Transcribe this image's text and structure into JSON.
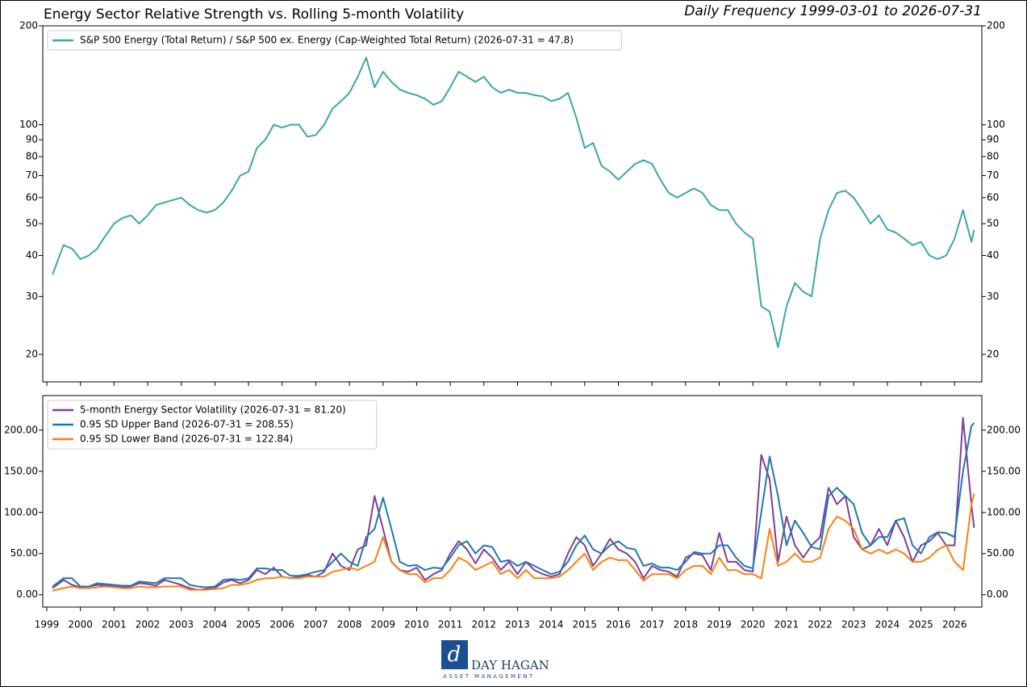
{
  "chart_data": [
    {
      "type": "line",
      "title": "Energy Sector Relative Strength vs. Rolling 5-month Volatility",
      "subtitle": "Daily Frequency 1999-03-01 to 2026-07-31",
      "log_scale": true,
      "x": [
        1999.17,
        1999.5,
        1999.75,
        2000.0,
        2000.25,
        2000.5,
        2000.75,
        2001.0,
        2001.25,
        2001.5,
        2001.75,
        2002.0,
        2002.25,
        2002.5,
        2002.75,
        2003.0,
        2003.25,
        2003.5,
        2003.75,
        2004.0,
        2004.25,
        2004.5,
        2004.75,
        2005.0,
        2005.25,
        2005.5,
        2005.75,
        2006.0,
        2006.25,
        2006.5,
        2006.75,
        2007.0,
        2007.25,
        2007.5,
        2007.75,
        2008.0,
        2008.25,
        2008.5,
        2008.75,
        2009.0,
        2009.25,
        2009.5,
        2009.75,
        2010.0,
        2010.25,
        2010.5,
        2010.75,
        2011.0,
        2011.25,
        2011.5,
        2011.75,
        2012.0,
        2012.25,
        2012.5,
        2012.75,
        2013.0,
        2013.25,
        2013.5,
        2013.75,
        2014.0,
        2014.25,
        2014.5,
        2014.75,
        2015.0,
        2015.25,
        2015.5,
        2015.75,
        2016.0,
        2016.25,
        2016.5,
        2016.75,
        2017.0,
        2017.25,
        2017.5,
        2017.75,
        2018.0,
        2018.25,
        2018.5,
        2018.75,
        2019.0,
        2019.25,
        2019.5,
        2019.75,
        2020.0,
        2020.25,
        2020.5,
        2020.75,
        2021.0,
        2021.25,
        2021.5,
        2021.75,
        2022.0,
        2022.25,
        2022.5,
        2022.75,
        2023.0,
        2023.25,
        2023.5,
        2023.75,
        2024.0,
        2024.25,
        2024.5,
        2024.75,
        2025.0,
        2025.25,
        2025.5,
        2025.75,
        2026.0,
        2026.25,
        2026.5,
        2026.58
      ],
      "xlim": [
        1998.88,
        2026.81
      ],
      "ylim": [
        16.5,
        200
      ],
      "yticks": [
        20,
        30,
        40,
        50,
        60,
        70,
        80,
        90,
        100,
        200
      ],
      "series": [
        {
          "name": "S&P 500 Energy (Total Return) / S&P 500 ex. Energy (Cap-Weighted Total Return) (2026-07-31 = 47.8)",
          "color": "#3aa8a6",
          "values": [
            35,
            43,
            42,
            39,
            40,
            42,
            46,
            50,
            52,
            53,
            50,
            53,
            57,
            58,
            59,
            60,
            57,
            55,
            54,
            55,
            58,
            63,
            70,
            72,
            85,
            90,
            100,
            98,
            100,
            100,
            92,
            93,
            100,
            112,
            118,
            125,
            140,
            160,
            130,
            145,
            135,
            128,
            125,
            123,
            120,
            115,
            118,
            130,
            145,
            140,
            135,
            140,
            130,
            125,
            128,
            125,
            125,
            123,
            122,
            118,
            120,
            125,
            105,
            85,
            88,
            75,
            72,
            68,
            72,
            76,
            78,
            76,
            68,
            62,
            60,
            62,
            64,
            62,
            57,
            55,
            55,
            50,
            47,
            45,
            28,
            27,
            21,
            28,
            33,
            31,
            30,
            45,
            55,
            62,
            63,
            60,
            55,
            50,
            53,
            48,
            47,
            45,
            43,
            44,
            40,
            39,
            40,
            45,
            55,
            44,
            47.8
          ]
        }
      ]
    },
    {
      "type": "line",
      "x": [
        1999.17,
        1999.5,
        1999.75,
        2000.0,
        2000.25,
        2000.5,
        2000.75,
        2001.0,
        2001.25,
        2001.5,
        2001.75,
        2002.0,
        2002.25,
        2002.5,
        2002.75,
        2003.0,
        2003.25,
        2003.5,
        2003.75,
        2004.0,
        2004.25,
        2004.5,
        2004.75,
        2005.0,
        2005.25,
        2005.5,
        2005.75,
        2006.0,
        2006.25,
        2006.5,
        2006.75,
        2007.0,
        2007.25,
        2007.5,
        2007.75,
        2008.0,
        2008.25,
        2008.5,
        2008.75,
        2009.0,
        2009.25,
        2009.5,
        2009.75,
        2010.0,
        2010.25,
        2010.5,
        2010.75,
        2011.0,
        2011.25,
        2011.5,
        2011.75,
        2012.0,
        2012.25,
        2012.5,
        2012.75,
        2013.0,
        2013.25,
        2013.5,
        2013.75,
        2014.0,
        2014.25,
        2014.5,
        2014.75,
        2015.0,
        2015.25,
        2015.5,
        2015.75,
        2016.0,
        2016.25,
        2016.5,
        2016.75,
        2017.0,
        2017.25,
        2017.5,
        2017.75,
        2018.0,
        2018.25,
        2018.5,
        2018.75,
        2019.0,
        2019.25,
        2019.5,
        2019.75,
        2020.0,
        2020.25,
        2020.5,
        2020.75,
        2021.0,
        2021.25,
        2021.5,
        2021.75,
        2022.0,
        2022.25,
        2022.5,
        2022.75,
        2023.0,
        2023.25,
        2023.5,
        2023.75,
        2024.0,
        2024.25,
        2024.5,
        2024.75,
        2025.0,
        2025.25,
        2025.5,
        2025.75,
        2026.0,
        2026.25,
        2026.5,
        2026.58
      ],
      "xlim": [
        1998.88,
        2026.81
      ],
      "xticks": [
        1999,
        2000,
        2001,
        2002,
        2003,
        2004,
        2005,
        2006,
        2007,
        2008,
        2009,
        2010,
        2011,
        2012,
        2013,
        2014,
        2015,
        2016,
        2017,
        2018,
        2019,
        2020,
        2021,
        2022,
        2023,
        2024,
        2025,
        2026
      ],
      "ylim": [
        -15,
        242
      ],
      "yticks": [
        {
          "value": 0,
          "label": "0.00"
        },
        {
          "value": 50,
          "label": "50.00"
        },
        {
          "value": 100,
          "label": "100.00"
        },
        {
          "value": 150,
          "label": "150.00"
        },
        {
          "value": 200,
          "label": "200.00"
        }
      ],
      "series": [
        {
          "name": "5-month Energy Sector Volatility (2026-07-31 = 81.20)",
          "color": "#7b3f9e",
          "values": [
            8,
            18,
            12,
            9,
            10,
            12,
            11,
            10,
            9,
            10,
            14,
            13,
            11,
            18,
            15,
            12,
            8,
            6,
            7,
            8,
            15,
            18,
            14,
            18,
            30,
            25,
            33,
            22,
            20,
            22,
            24,
            22,
            28,
            50,
            35,
            30,
            55,
            60,
            120,
            80,
            40,
            30,
            28,
            33,
            18,
            25,
            30,
            50,
            65,
            55,
            38,
            55,
            45,
            30,
            40,
            25,
            40,
            30,
            25,
            22,
            25,
            50,
            70,
            60,
            35,
            50,
            68,
            55,
            50,
            40,
            20,
            35,
            30,
            28,
            22,
            45,
            50,
            48,
            30,
            75,
            40,
            40,
            30,
            28,
            170,
            140,
            40,
            95,
            60,
            45,
            60,
            70,
            130,
            110,
            120,
            70,
            55,
            60,
            80,
            60,
            90,
            70,
            40,
            60,
            65,
            75,
            60,
            60,
            215,
            110,
            81.2
          ]
        },
        {
          "name": "0.95 SD Upper Band (2026-07-31 = 208.55)",
          "color": "#1f77b4",
          "values": [
            10,
            20,
            20,
            10,
            10,
            14,
            13,
            12,
            11,
            11,
            16,
            15,
            14,
            20,
            20,
            20,
            12,
            10,
            9,
            10,
            18,
            19,
            18,
            20,
            32,
            32,
            30,
            30,
            23,
            23,
            25,
            28,
            30,
            40,
            50,
            40,
            35,
            70,
            80,
            118,
            80,
            40,
            35,
            36,
            30,
            33,
            32,
            45,
            60,
            65,
            50,
            60,
            58,
            40,
            42,
            35,
            40,
            35,
            30,
            25,
            28,
            40,
            60,
            72,
            55,
            50,
            60,
            65,
            57,
            55,
            35,
            38,
            33,
            33,
            30,
            40,
            52,
            50,
            50,
            60,
            60,
            45,
            35,
            32,
            100,
            168,
            120,
            60,
            90,
            75,
            58,
            55,
            120,
            130,
            120,
            110,
            75,
            60,
            70,
            70,
            90,
            93,
            60,
            50,
            70,
            76,
            75,
            70,
            150,
            205,
            208.55
          ]
        },
        {
          "name": "0.95 SD Lower Band (2026-07-31 = 122.84)",
          "color": "#ff7f0e",
          "values": [
            5,
            8,
            10,
            8,
            8,
            9,
            10,
            9,
            8,
            8,
            10,
            9,
            9,
            10,
            10,
            10,
            6,
            6,
            6,
            7,
            8,
            12,
            12,
            14,
            18,
            20,
            20,
            22,
            20,
            20,
            22,
            22,
            22,
            28,
            30,
            33,
            30,
            35,
            40,
            70,
            40,
            30,
            25,
            25,
            15,
            20,
            20,
            30,
            45,
            40,
            30,
            35,
            40,
            25,
            30,
            20,
            30,
            20,
            20,
            20,
            22,
            30,
            40,
            50,
            30,
            40,
            45,
            42,
            42,
            30,
            17,
            25,
            25,
            25,
            20,
            30,
            35,
            35,
            25,
            45,
            30,
            30,
            25,
            25,
            20,
            80,
            35,
            40,
            50,
            40,
            40,
            45,
            80,
            95,
            90,
            80,
            55,
            50,
            55,
            50,
            55,
            50,
            40,
            40,
            45,
            55,
            60,
            40,
            30,
            110,
            122.84
          ]
        }
      ]
    }
  ],
  "logo": {
    "name": "DAY HAGAN",
    "tagline": "ASSET MANAGEMENT"
  }
}
